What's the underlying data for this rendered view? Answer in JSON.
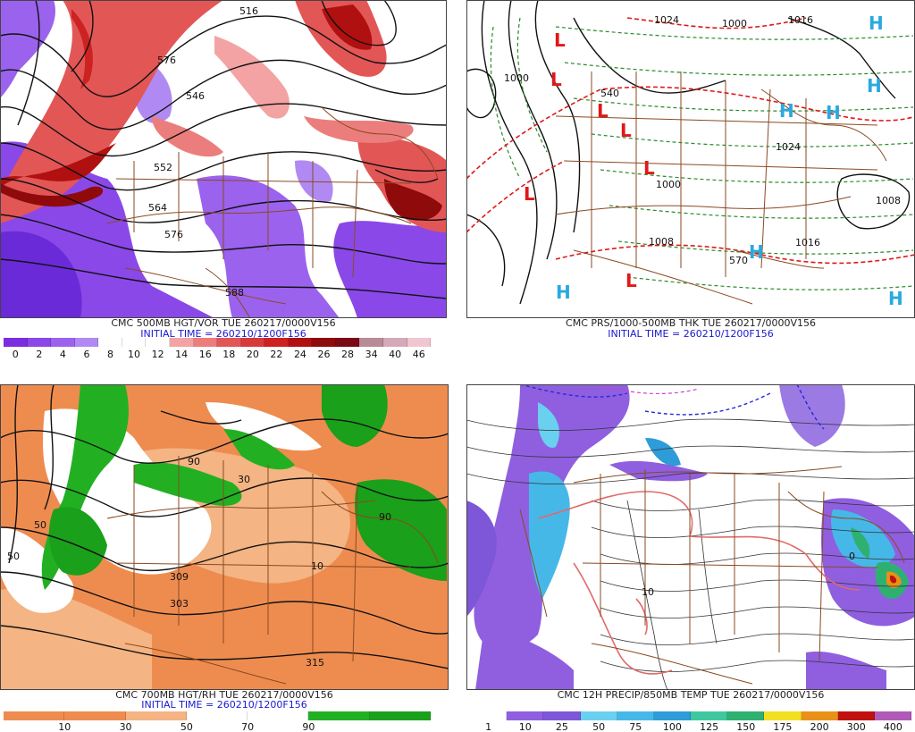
{
  "panels": [
    {
      "id": "p1",
      "caption": "CMC 500MB HGT/VOR TUE 260217/0000V156",
      "initial": "INITIAL TIME = 260210/1200F156",
      "colorbar": {
        "labels": [
          "0",
          "2",
          "4",
          "6",
          "8",
          "10",
          "12",
          "14",
          "16",
          "18",
          "20",
          "22",
          "24",
          "26",
          "28",
          "34",
          "40",
          "46"
        ],
        "colors": [
          "#7a2ee0",
          "#8a48e8",
          "#9b62ee",
          "#b08af2",
          "#ffffff",
          "#ffffff",
          "#ffffff",
          "#f3a3a3",
          "#ec7d7d",
          "#e35656",
          "#d83a3a",
          "#cc2222",
          "#b01010",
          "#8f0a0a",
          "#7a0a14",
          "#b98a98",
          "#d5aab8",
          "#f0c7d0"
        ]
      },
      "contour_labels": [
        "576",
        "546",
        "552",
        "564",
        "576",
        "588",
        "516"
      ],
      "symbols": []
    },
    {
      "id": "p2",
      "caption": "CMC PRS/1000-500MB THK TUE 260217/0000V156",
      "initial": "INITIAL TIME = 260210/1200F156",
      "colorbar": null,
      "contour_labels": [
        "1024",
        "1016",
        "1000",
        "1024",
        "1000",
        "1008",
        "1016",
        "1008",
        "570",
        "540",
        "1000"
      ],
      "symbols": [
        "L",
        "L",
        "L",
        "L",
        "L",
        "L",
        "L",
        "H",
        "H",
        "H",
        "H",
        "H",
        "H",
        "H"
      ]
    },
    {
      "id": "p3",
      "caption": "CMC 700MB HGT/RH TUE 260217/0000V156",
      "initial": "INITIAL TIME = 260210/1200F156",
      "colorbar": {
        "labels": [
          "10",
          "30",
          "50",
          "70",
          "90"
        ],
        "colors": [
          "#ee8c50",
          "#ee8c50",
          "#f4b483",
          "#ffffff",
          "#ffffff",
          "#22b022",
          "#1aa01a"
        ]
      },
      "contour_labels": [
        "309",
        "303",
        "315",
        "50",
        "90",
        "10",
        "90",
        "50",
        "30"
      ],
      "symbols": []
    },
    {
      "id": "p4",
      "caption": "CMC 12H PRECIP/850MB TEMP TUE 260217/0000V156",
      "initial": "",
      "colorbar": {
        "labels": [
          "1",
          "10",
          "25",
          "50",
          "75",
          "100",
          "125",
          "150",
          "175",
          "200",
          "300",
          "400"
        ],
        "colors": [
          "#ffffff",
          "#8f5fe0",
          "#7e56d8",
          "#6ad0f0",
          "#46b8e8",
          "#2d9cd8",
          "#3fc8a0",
          "#2fb070",
          "#f0e020",
          "#e89018",
          "#c01010",
          "#b05ab8"
        ]
      },
      "contour_labels": [
        "10",
        "0"
      ],
      "symbols": []
    }
  ]
}
